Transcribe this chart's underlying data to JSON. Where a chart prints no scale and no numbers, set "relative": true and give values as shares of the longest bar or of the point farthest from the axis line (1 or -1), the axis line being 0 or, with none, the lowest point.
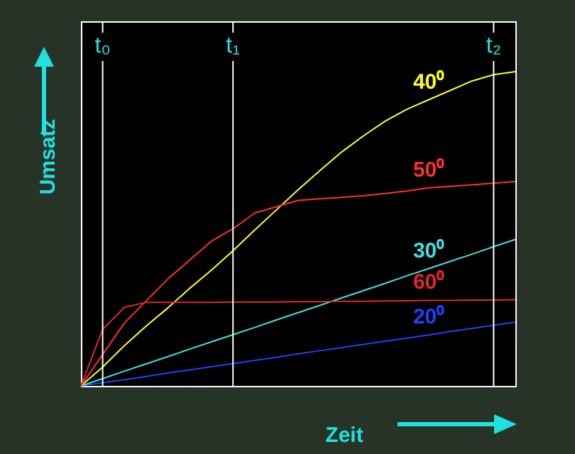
{
  "chart_data": {
    "type": "line",
    "relative": true,
    "xlabel": "Zeit",
    "ylabel": "Umsatz",
    "tick_labels": "x",
    "categories": [
      null,
      "t₀",
      null,
      null,
      null,
      null,
      null,
      "t₁",
      null,
      null,
      null,
      null,
      null,
      null,
      null,
      null,
      null,
      null,
      null,
      "t₂",
      null
    ],
    "series": [
      {
        "name": "20⁰",
        "color": "#2040ff",
        "values": [
          0,
          0.01,
          0.02,
          0.03,
          0.041,
          0.051,
          0.061,
          0.071,
          0.081,
          0.091,
          0.102,
          0.112,
          0.122,
          0.132,
          0.142,
          0.152,
          0.162,
          0.173,
          0.183,
          0.193,
          0.203
        ]
      },
      {
        "name": "30⁰",
        "color": "#40e0e0",
        "values": [
          0,
          0.023,
          0.047,
          0.07,
          0.093,
          0.117,
          0.14,
          0.163,
          0.186,
          0.21,
          0.233,
          0.256,
          0.28,
          0.303,
          0.326,
          0.35,
          0.373,
          0.396,
          0.419,
          0.443,
          0.466
        ]
      },
      {
        "name": "40⁰",
        "color": "#ffff20",
        "values": [
          0,
          0.06,
          0.128,
          0.19,
          0.248,
          0.31,
          0.368,
          0.43,
          0.496,
          0.56,
          0.624,
          0.685,
          0.744,
          0.795,
          0.842,
          0.88,
          0.91,
          0.94,
          0.97,
          0.99,
          1
        ]
      },
      {
        "name": "50⁰",
        "color": "#ff3030",
        "values": [
          0,
          0.1,
          0.2,
          0.27,
          0.34,
          0.4,
          0.46,
          0.5,
          0.55,
          0.57,
          0.59,
          0.595,
          0.6,
          0.605,
          0.612,
          0.62,
          0.63,
          0.635,
          0.64,
          0.645,
          0.65
        ]
      },
      {
        "name": "60⁰",
        "color": "#e02828",
        "values": [
          0,
          0.18,
          0.25,
          0.266,
          0.266,
          0.266,
          0.266,
          0.267,
          0.267,
          0.267,
          0.268,
          0.268,
          0.269,
          0.269,
          0.27,
          0.271,
          0.272,
          0.272,
          0.273,
          0.273,
          0.274
        ]
      }
    ],
    "ref_lines": [
      {
        "axis": "x",
        "value": "t₀",
        "color": "#ffffff"
      },
      {
        "axis": "x",
        "value": "t₁",
        "color": "#ffffff"
      },
      {
        "axis": "x",
        "value": "t₂",
        "color": "#ffffff"
      }
    ]
  }
}
